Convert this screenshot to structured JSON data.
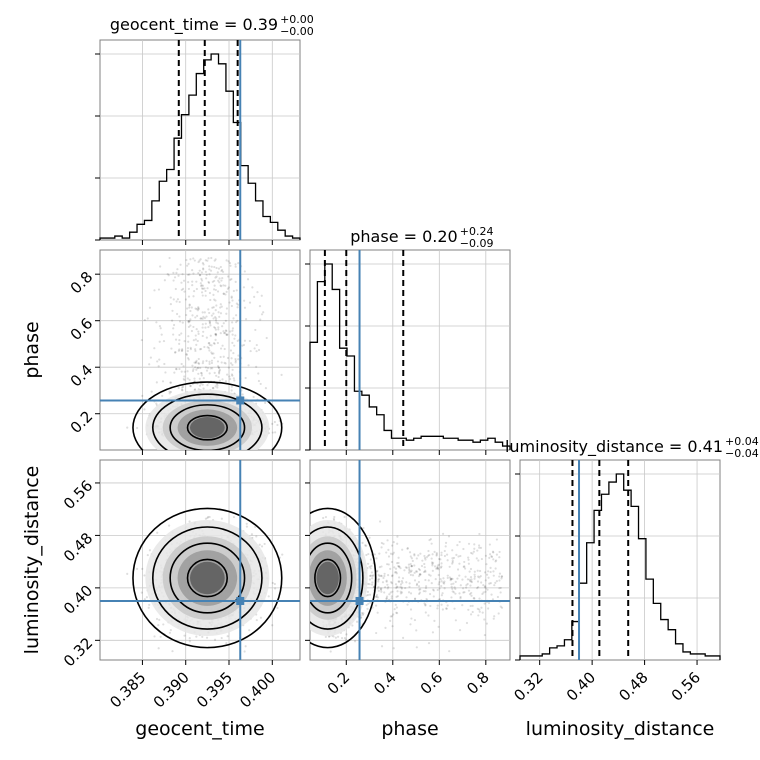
{
  "chart_data": {
    "type": "corner",
    "parameters": [
      "geocent_time",
      "phase",
      "luminosity_distance"
    ],
    "truth": {
      "geocent_time": 0.3963,
      "phase": 0.257,
      "luminosity_distance": 0.38
    },
    "panel_titles": {
      "geocent_time": {
        "label": "geocent_time = 0.39",
        "sup": "+0.00",
        "sub": "−0.00"
      },
      "phase": {
        "label": "phase = 0.20",
        "sup": "+0.24",
        "sub": "−0.09"
      },
      "luminosity_distance": {
        "label": "luminosity_distance = 0.41",
        "sup": "+0.04",
        "sub": "−0.04"
      }
    },
    "axis_labels": {
      "geocent_time": "geocent_time",
      "phase": "phase",
      "luminosity_distance": "luminosity_distance"
    },
    "ticks": {
      "geocent_time": [
        "0.385",
        "0.390",
        "0.395",
        "0.400"
      ],
      "phase": [
        "0.2",
        "0.4",
        "0.6",
        "0.8"
      ],
      "luminosity_distance": [
        "0.32",
        "0.40",
        "0.48",
        "0.56"
      ]
    },
    "ranges": {
      "geocent_time": [
        0.3801,
        0.4032
      ],
      "phase": [
        0.044,
        0.904
      ],
      "luminosity_distance": [
        0.29,
        0.595
      ]
    },
    "quantiles": {
      "geocent_time": [
        0.3892,
        0.3922,
        0.396
      ],
      "phase": [
        0.108,
        0.2,
        0.445
      ],
      "luminosity_distance": [
        0.37,
        0.411,
        0.455
      ]
    },
    "hist1d": {
      "geocent_time": [
        1,
        1,
        2,
        1,
        4,
        8,
        10,
        20,
        30,
        36,
        52,
        64,
        74,
        85,
        92,
        95,
        90,
        76,
        60,
        38,
        29,
        20,
        12,
        9,
        5,
        2,
        1
      ],
      "phase": [
        55,
        86,
        95,
        82,
        52,
        48,
        30,
        28,
        22,
        18,
        10,
        6,
        6,
        5,
        6,
        7,
        7,
        7,
        6,
        6,
        5,
        5,
        4,
        5,
        6,
        4,
        2
      ],
      "luminosity_distance": [
        2,
        2,
        2,
        3,
        6,
        7,
        10,
        19,
        38,
        58,
        74,
        82,
        88,
        92,
        84,
        76,
        60,
        40,
        28,
        20,
        15,
        8,
        4,
        3,
        3,
        2,
        2
      ]
    },
    "grid": true,
    "truth_color": "#4682b4",
    "line_color": "#000000"
  }
}
